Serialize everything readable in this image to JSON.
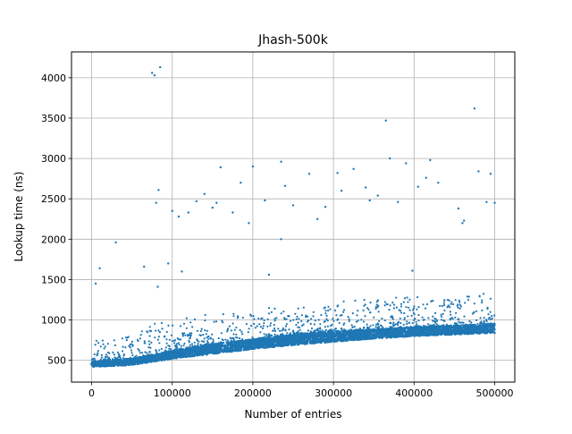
{
  "chart_data": {
    "type": "scatter",
    "title": "Jhash-500k",
    "xlabel": "Number of entries",
    "ylabel": "Lookup time (ns)",
    "xlim": [
      -25000,
      525000
    ],
    "ylim": [
      230,
      4320
    ],
    "grid": true,
    "marker_color": "#1f77b4",
    "xticks": [
      0,
      100000,
      200000,
      300000,
      400000,
      500000
    ],
    "xtick_labels": [
      "0",
      "100000",
      "200000",
      "300000",
      "400000",
      "500000"
    ],
    "yticks": [
      500,
      1000,
      1500,
      2000,
      2500,
      3000,
      3500,
      4000
    ],
    "ytick_labels": [
      "500",
      "1000",
      "1500",
      "2000",
      "2500",
      "3000",
      "3500",
      "4000"
    ],
    "baseline_band": {
      "x": [
        0,
        50000,
        100000,
        150000,
        200000,
        250000,
        300000,
        350000,
        400000,
        450000,
        500000
      ],
      "low": [
        420,
        440,
        520,
        580,
        640,
        690,
        730,
        770,
        800,
        820,
        840
      ],
      "high": [
        480,
        520,
        620,
        700,
        760,
        820,
        860,
        880,
        910,
        930,
        950
      ]
    },
    "outliers": {
      "x": [
        75000,
        78000,
        85000,
        83000,
        80000,
        30000,
        155000,
        160000,
        200000,
        235000,
        250000,
        270000,
        305000,
        325000,
        365000,
        370000,
        390000,
        420000,
        405000,
        475000,
        480000,
        495000,
        500000,
        130000,
        140000,
        185000,
        215000,
        290000,
        340000,
        355000,
        430000,
        460000,
        220000,
        175000,
        100000,
        112000,
        65000,
        95000,
        108000,
        120000,
        150000,
        195000,
        240000,
        280000,
        310000,
        345000,
        380000,
        415000,
        455000,
        490000,
        10000,
        5000,
        82000,
        235000,
        398000,
        462000
      ],
      "y": [
        4060,
        4030,
        4130,
        2610,
        2450,
        1960,
        2450,
        2890,
        2900,
        2960,
        2420,
        2810,
        2820,
        2870,
        3470,
        3000,
        2940,
        2980,
        2650,
        3620,
        2840,
        2810,
        2450,
        2470,
        2560,
        2700,
        2480,
        2400,
        2640,
        2540,
        2700,
        2200,
        1560,
        2330,
        2350,
        1600,
        1660,
        1700,
        2280,
        2330,
        2390,
        2200,
        2660,
        2250,
        2600,
        2480,
        2460,
        2760,
        2380,
        2460,
        1640,
        1450,
        1410,
        2000,
        1610,
        2230
      ]
    }
  }
}
